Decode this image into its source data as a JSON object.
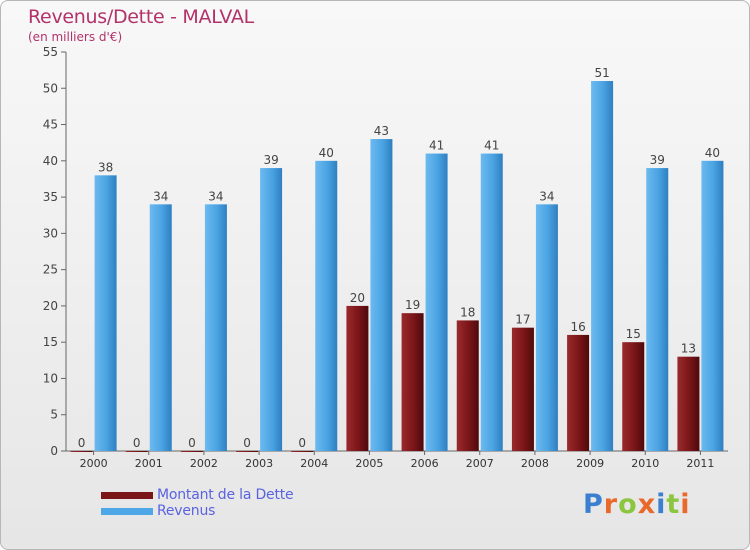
{
  "header": {
    "title": "Revenus/Dette - MALVAL",
    "subtitle": "(en milliers d'€)"
  },
  "chart_data": {
    "type": "bar",
    "categories": [
      "2000",
      "2001",
      "2002",
      "2003",
      "2004",
      "2005",
      "2006",
      "2007",
      "2008",
      "2009",
      "2010",
      "2011"
    ],
    "series": [
      {
        "name": "Montant de la Dette",
        "values": [
          0,
          0,
          0,
          0,
          0,
          20,
          19,
          18,
          17,
          16,
          15,
          13
        ],
        "color": "#7a1518"
      },
      {
        "name": "Revenus",
        "values": [
          38,
          34,
          34,
          39,
          40,
          43,
          41,
          41,
          34,
          51,
          39,
          40
        ],
        "color": "#4ea7e6"
      }
    ],
    "ylim": [
      0,
      55
    ],
    "yticks": [
      0,
      5,
      10,
      15,
      20,
      25,
      30,
      35,
      40,
      45,
      50,
      55
    ],
    "grid": false,
    "legend_position": "bottom-left"
  },
  "logo": {
    "letters": [
      "P",
      "r",
      "o",
      "x",
      "i",
      "t",
      "i"
    ],
    "colors": [
      "#3a7fd0",
      "#e8692a",
      "#8cc63f",
      "#e8692a",
      "#3a7fd0",
      "#8cc63f",
      "#e8692a"
    ]
  }
}
